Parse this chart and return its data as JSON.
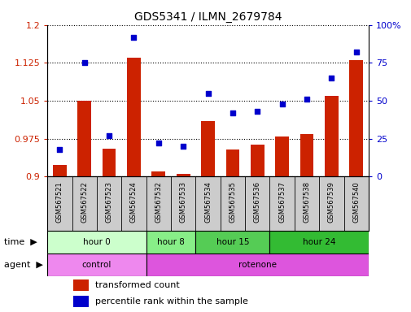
{
  "title": "GDS5341 / ILMN_2679784",
  "samples": [
    "GSM567521",
    "GSM567522",
    "GSM567523",
    "GSM567524",
    "GSM567532",
    "GSM567533",
    "GSM567534",
    "GSM567535",
    "GSM567536",
    "GSM567537",
    "GSM567538",
    "GSM567539",
    "GSM567540"
  ],
  "transformed_count": [
    0.923,
    1.05,
    0.955,
    1.135,
    0.91,
    0.905,
    1.01,
    0.953,
    0.963,
    0.98,
    0.985,
    1.06,
    1.13
  ],
  "percentile_rank": [
    18,
    75,
    27,
    92,
    22,
    20,
    55,
    42,
    43,
    48,
    51,
    65,
    82
  ],
  "ylim_left": [
    0.9,
    1.2
  ],
  "ylim_right": [
    0,
    100
  ],
  "yticks_left": [
    0.9,
    0.975,
    1.05,
    1.125,
    1.2
  ],
  "yticks_right": [
    0,
    25,
    50,
    75,
    100
  ],
  "ytick_labels_left": [
    "0.9",
    "0.975",
    "1.05",
    "1.125",
    "1.2"
  ],
  "ytick_labels_right": [
    "0",
    "25",
    "50",
    "75",
    "100%"
  ],
  "bar_color": "#cc2200",
  "dot_color": "#0000cc",
  "time_groups": [
    {
      "label": "hour 0",
      "start": 0,
      "end": 4,
      "color": "#ccffcc"
    },
    {
      "label": "hour 8",
      "start": 4,
      "end": 6,
      "color": "#88ee88"
    },
    {
      "label": "hour 15",
      "start": 6,
      "end": 9,
      "color": "#55cc55"
    },
    {
      "label": "hour 24",
      "start": 9,
      "end": 13,
      "color": "#33bb33"
    }
  ],
  "agent_groups": [
    {
      "label": "control",
      "start": 0,
      "end": 4,
      "color": "#ee88ee"
    },
    {
      "label": "rotenone",
      "start": 4,
      "end": 13,
      "color": "#dd55dd"
    }
  ],
  "right_axis_color": "#0000cc",
  "bar_color_left": "#cc2200",
  "grid_color": "#000000",
  "bg_color": "#ffffff",
  "tick_bg_color": "#cccccc"
}
